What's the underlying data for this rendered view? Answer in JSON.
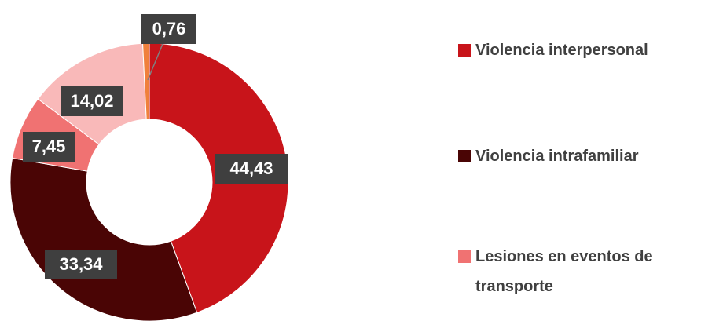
{
  "chart_data": {
    "type": "donut",
    "categories": [
      "Violencia interpersonal",
      "Violencia intrafamiliar",
      "Lesiones en eventos de transporte",
      null,
      null
    ],
    "values": [
      44.43,
      33.34,
      7.45,
      14.02,
      0.76
    ],
    "value_labels": [
      "44,43",
      "33,34",
      "7,45",
      "14,02",
      "0,76"
    ],
    "colors": [
      "#c8141a",
      "#4a0505",
      "#f07272",
      "#f9b9b9",
      "#f0803c"
    ]
  }
}
